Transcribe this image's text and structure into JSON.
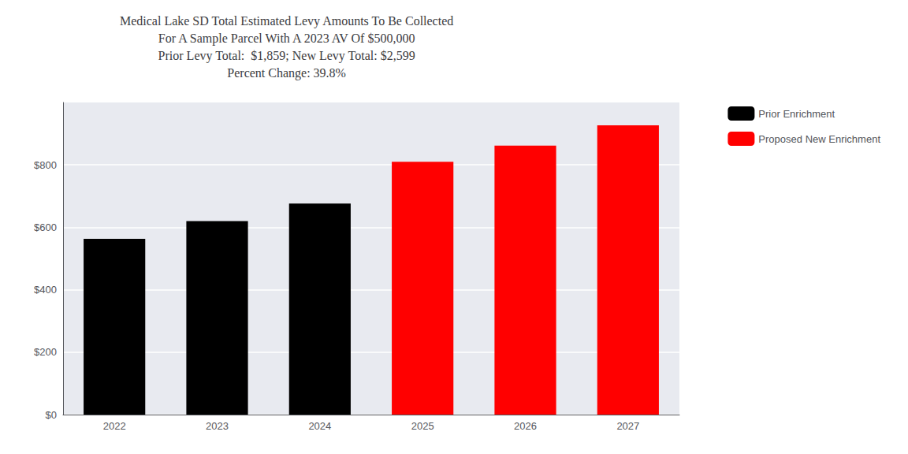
{
  "chart_data": {
    "type": "bar",
    "title": "Medical Lake SD Total Estimated Levy Amounts To Be Collected\nFor A Sample Parcel With A 2023 AV Of $500,000\nPrior Levy Total:  $1,859; New Levy Total: $2,599\nPercent Change: 39.8%",
    "categories": [
      "2022",
      "2023",
      "2024",
      "2025",
      "2026",
      "2027"
    ],
    "series": [
      {
        "name": "Prior Enrichment",
        "color": "#000000",
        "values": [
          563,
          620,
          676,
          null,
          null,
          null
        ]
      },
      {
        "name": "Proposed New Enrichment",
        "color": "#ff0000",
        "values": [
          null,
          null,
          null,
          810,
          862,
          927
        ]
      }
    ],
    "ylim": [
      0,
      1000
    ],
    "yticks": [
      {
        "value": 0,
        "label": "$0"
      },
      {
        "value": 200,
        "label": "$200"
      },
      {
        "value": 400,
        "label": "$400"
      },
      {
        "value": 600,
        "label": "$600"
      },
      {
        "value": 800,
        "label": "$800"
      }
    ],
    "grid": true,
    "legend": "upper right"
  }
}
